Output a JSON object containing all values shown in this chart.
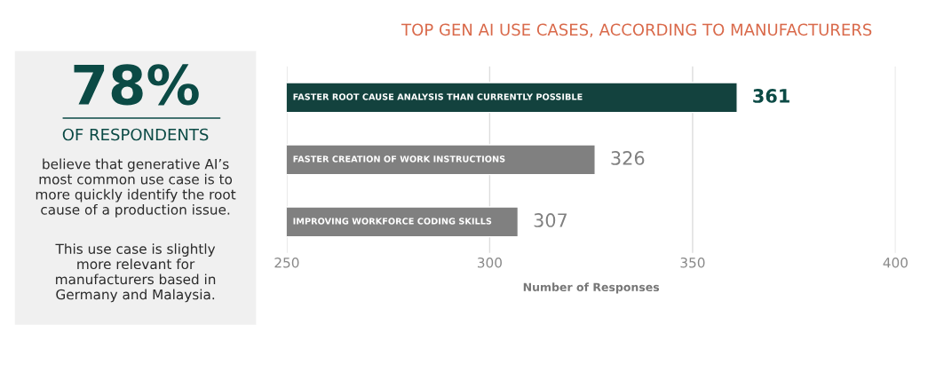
{
  "chart_data": [
    {
      "type": "other",
      "title": "78%",
      "subtitle": "OF RESPONDENTS",
      "color": "#0b4a45",
      "annotations": [
        "believe that generative AI’s\nmost common use case is to\nmore quickly identify the root\ncause of a production issue.",
        "This use case is slightly\nmore relevant for\nmanufacturers based in\nGermany and Malaysia."
      ]
    },
    {
      "type": "bar",
      "orientation": "horizontal",
      "title": "TOP GEN AI USE CASES, ACCORDING TO MANUFACTURERS",
      "xlabel": "Number of Responses",
      "categories": [
        "FASTER ROOT CAUSE ANALYSIS THAN CURRENTLY POSSIBLE",
        "FASTER CREATION OF WORK INSTRUCTIONS",
        "IMPROVING WORKFORCE CODING SKILLS"
      ],
      "values": [
        361,
        326,
        307
      ],
      "colors": [
        "#0b4a45",
        "#808080",
        "#808080"
      ],
      "xlim": [
        250,
        400
      ],
      "xticks": [
        250,
        300,
        350,
        400
      ],
      "grid": "x",
      "data_labels": true,
      "legend": false
    }
  ]
}
